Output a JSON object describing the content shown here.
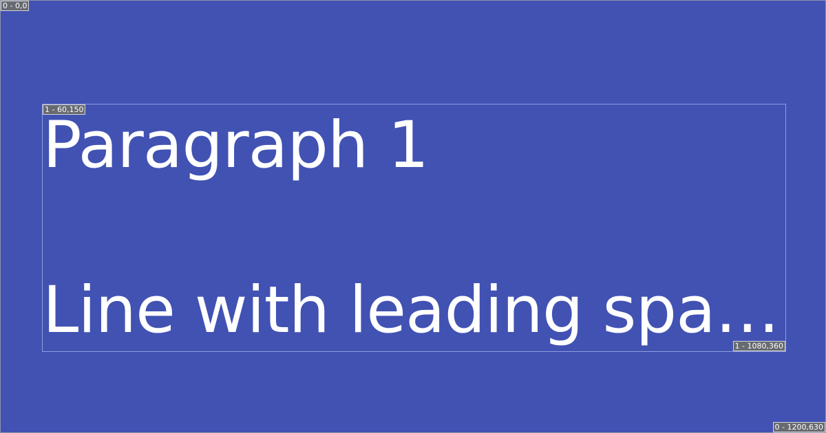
{
  "debug": {
    "canvas_start_label": "0 - 0,0",
    "canvas_end_label": "0 - 1200,630",
    "text_box_start_label": "1 - 60,150",
    "text_box_end_label": "1 - 1080,360"
  },
  "text_block": {
    "lines": [
      "Paragraph 1",
      "Line with leading spac…"
    ]
  },
  "colors": {
    "background": "#4152b3",
    "text": "#ffffff",
    "frame": "#8e9fe0"
  }
}
